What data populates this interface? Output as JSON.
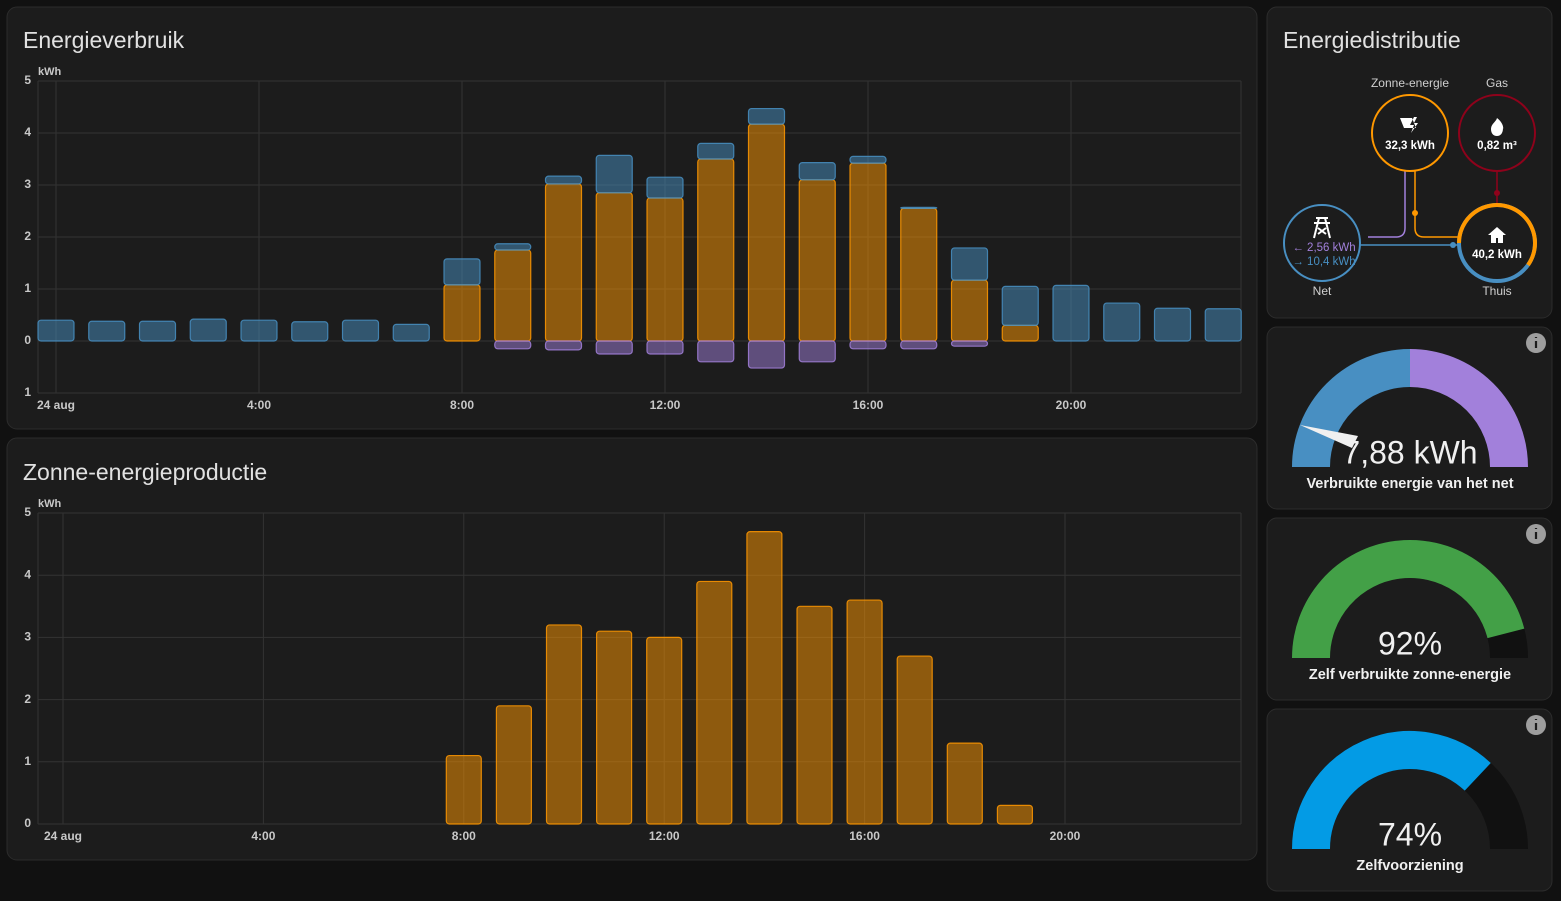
{
  "chart_data": [
    {
      "type": "bar",
      "stacked": true,
      "title": "Energieverbruik",
      "y_unit": "kWh",
      "categories": [
        "24 aug",
        null,
        null,
        null,
        "4:00",
        null,
        null,
        null,
        "8:00",
        null,
        null,
        null,
        "12:00",
        null,
        null,
        null,
        "16:00",
        null,
        null,
        null,
        "20:00",
        null,
        null,
        null
      ],
      "series": [
        {
          "color": "#ff9800",
          "values": [
            null,
            null,
            null,
            null,
            null,
            null,
            null,
            null,
            1.08,
            1.75,
            3.02,
            2.85,
            2.75,
            3.5,
            4.17,
            3.1,
            3.42,
            2.55,
            1.17,
            0.3,
            null,
            null,
            null,
            null
          ]
        },
        {
          "color": "#488fc2",
          "values": [
            0.4,
            0.38,
            0.38,
            0.42,
            0.4,
            0.37,
            0.4,
            0.32,
            0.5,
            0.12,
            0.15,
            0.72,
            0.4,
            0.3,
            0.3,
            0.33,
            0.13,
            0.02,
            0.62,
            0.75,
            1.07,
            0.73,
            0.63,
            0.62
          ]
        },
        {
          "color": "#a280db",
          "values": [
            null,
            null,
            null,
            null,
            null,
            null,
            null,
            null,
            null,
            -0.15,
            -0.17,
            -0.25,
            -0.25,
            -0.4,
            -0.52,
            -0.4,
            -0.15,
            -0.15,
            -0.1,
            null,
            null,
            null,
            null,
            null
          ]
        }
      ],
      "ylim": [
        -1,
        5
      ],
      "yticks": [
        {
          "value": -1,
          "label": "1"
        },
        0,
        1,
        2,
        3,
        4,
        5
      ],
      "grid": true
    },
    {
      "type": "bar",
      "title": "Zonne-energieproductie",
      "y_unit": "kWh",
      "categories": [
        "24 aug",
        null,
        null,
        null,
        "4:00",
        null,
        null,
        null,
        "8:00",
        null,
        null,
        null,
        "12:00",
        null,
        null,
        null,
        "16:00",
        null,
        null,
        null,
        "20:00",
        null,
        null,
        null
      ],
      "series": [
        {
          "color": "#ff9800",
          "values": [
            null,
            null,
            null,
            null,
            null,
            null,
            null,
            null,
            1.1,
            1.9,
            3.2,
            3.1,
            3.0,
            3.9,
            4.7,
            3.5,
            3.6,
            2.7,
            1.3,
            0.3,
            null,
            null,
            null,
            null
          ]
        }
      ],
      "ylim": [
        0,
        5
      ],
      "yticks": [
        0,
        1,
        2,
        3,
        4,
        5
      ],
      "grid": true
    }
  ],
  "distribution": {
    "title": "Energiedistributie",
    "nodes": [
      {
        "label": "Zonne-energie",
        "value": "32,3 kWh"
      },
      {
        "label": "Gas",
        "value": "0,82 m³"
      },
      {
        "label": "Net",
        "values": [
          "← 2,56 kWh",
          "→ 10,4 kWh"
        ]
      },
      {
        "label": "Thuis",
        "value": "40,2 kWh"
      }
    ]
  },
  "gauges": [
    {
      "value_text": "7,88 kWh",
      "label": "Verbruikte energie van het net"
    },
    {
      "value": 92,
      "value_text": "92%",
      "range": [
        0,
        100
      ],
      "color": "#43a047",
      "label": "Zelf verbruikte zonne-energie"
    },
    {
      "value": 74,
      "value_text": "74%",
      "range": [
        0,
        100
      ],
      "color": "#039be5",
      "label": "Zelfvoorziening"
    }
  ]
}
